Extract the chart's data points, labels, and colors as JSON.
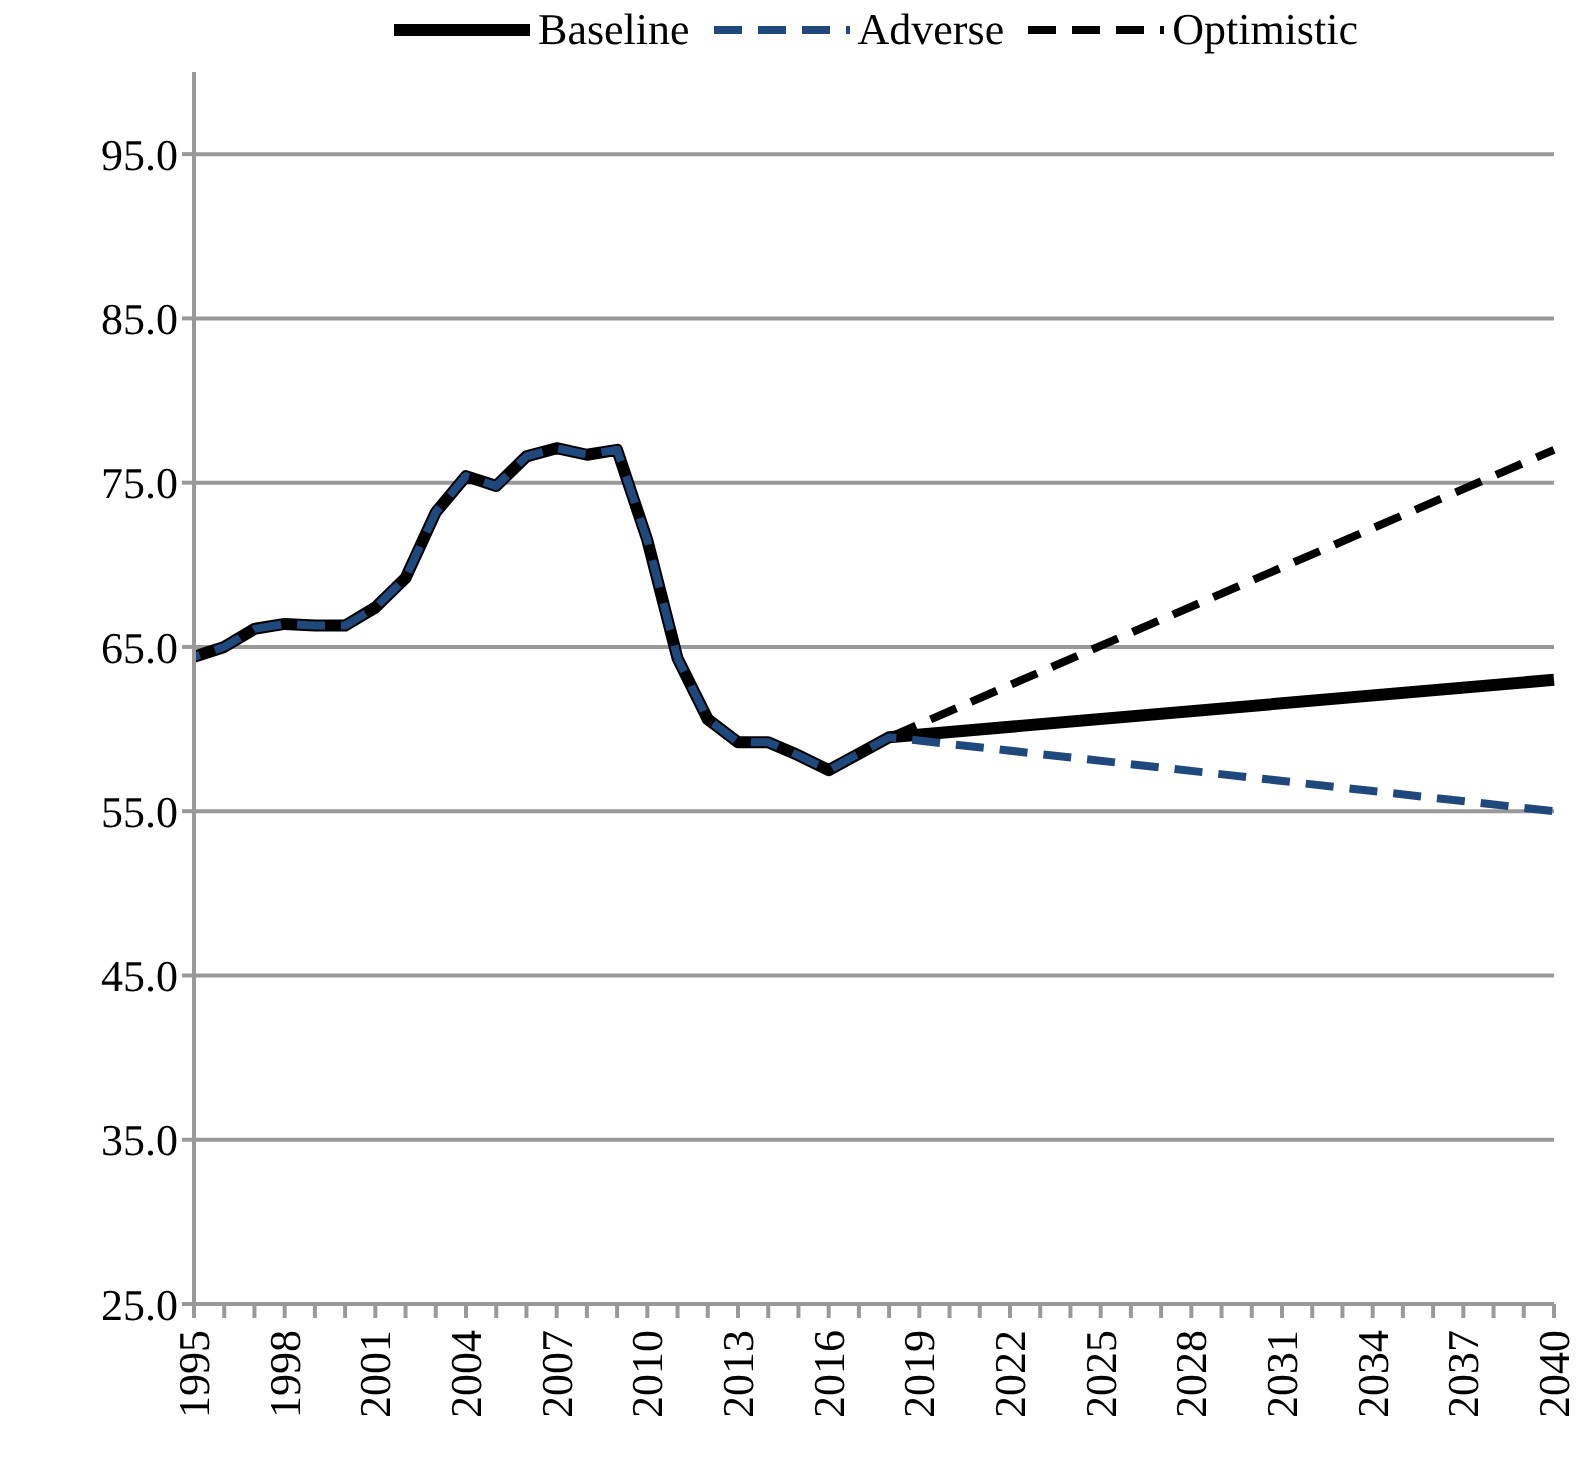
{
  "chart_data": {
    "type": "line",
    "categories": [
      "1995",
      null,
      null,
      "1998",
      null,
      null,
      "2001",
      null,
      null,
      "2004",
      null,
      null,
      "2007",
      null,
      null,
      "2010",
      null,
      null,
      "2013",
      null,
      null,
      "2016",
      null,
      null,
      "2019",
      null,
      null,
      "2022",
      null,
      null,
      "2025",
      null,
      null,
      "2028",
      null,
      null,
      "2031",
      null,
      null,
      "2034",
      null,
      null,
      "2037",
      null,
      null,
      "2040"
    ],
    "series": [
      {
        "name": "Baseline",
        "color": "#000000",
        "line_style": "solid",
        "values": [
          64.4,
          65.0,
          66.1,
          66.4,
          66.3,
          66.3,
          67.4,
          69.2,
          73.2,
          75.4,
          74.8,
          76.6,
          77.1,
          76.7,
          77.0,
          71.5,
          64.3,
          60.6,
          59.2,
          59.2,
          58.4,
          57.5,
          58.5,
          59.5,
          null,
          null,
          null,
          null,
          null,
          null,
          null,
          null,
          null,
          null,
          null,
          null,
          null,
          null,
          null,
          null,
          null,
          null,
          null,
          null,
          null,
          63.0
        ]
      },
      {
        "name": "Adverse",
        "color": "#1f497d",
        "line_style": "dashed",
        "values": [
          64.4,
          65.0,
          66.1,
          66.4,
          66.3,
          66.3,
          67.4,
          69.2,
          73.2,
          75.4,
          74.8,
          76.6,
          77.1,
          76.7,
          77.0,
          71.5,
          64.3,
          60.6,
          59.2,
          59.2,
          58.4,
          57.5,
          58.5,
          59.5,
          null,
          null,
          null,
          null,
          null,
          null,
          null,
          null,
          null,
          null,
          null,
          null,
          null,
          null,
          null,
          null,
          null,
          null,
          null,
          null,
          null,
          55.0
        ]
      },
      {
        "name": "Optimistic",
        "color": "#000000",
        "line_style": "dashed",
        "values": [
          64.4,
          65.0,
          66.1,
          66.4,
          66.3,
          66.3,
          67.4,
          69.2,
          73.2,
          75.4,
          74.8,
          76.6,
          77.1,
          76.7,
          77.0,
          71.5,
          64.3,
          60.6,
          59.2,
          59.2,
          58.4,
          57.5,
          58.5,
          59.5,
          null,
          null,
          null,
          null,
          null,
          null,
          null,
          null,
          null,
          null,
          null,
          null,
          null,
          null,
          null,
          null,
          null,
          null,
          null,
          null,
          null,
          77.0
        ]
      }
    ],
    "ylim": [
      25,
      100
    ],
    "yticks": [
      {
        "value": 25,
        "label": "25.0"
      },
      {
        "value": 35,
        "label": "35.0"
      },
      {
        "value": 45,
        "label": "45.0"
      },
      {
        "value": 55,
        "label": "55.0"
      },
      {
        "value": 65,
        "label": "65.0"
      },
      {
        "value": 75,
        "label": "75.0"
      },
      {
        "value": 85,
        "label": "85.0"
      },
      {
        "value": 95,
        "label": "95.0"
      }
    ],
    "grid": "y",
    "legend": "top",
    "marker": "none"
  }
}
